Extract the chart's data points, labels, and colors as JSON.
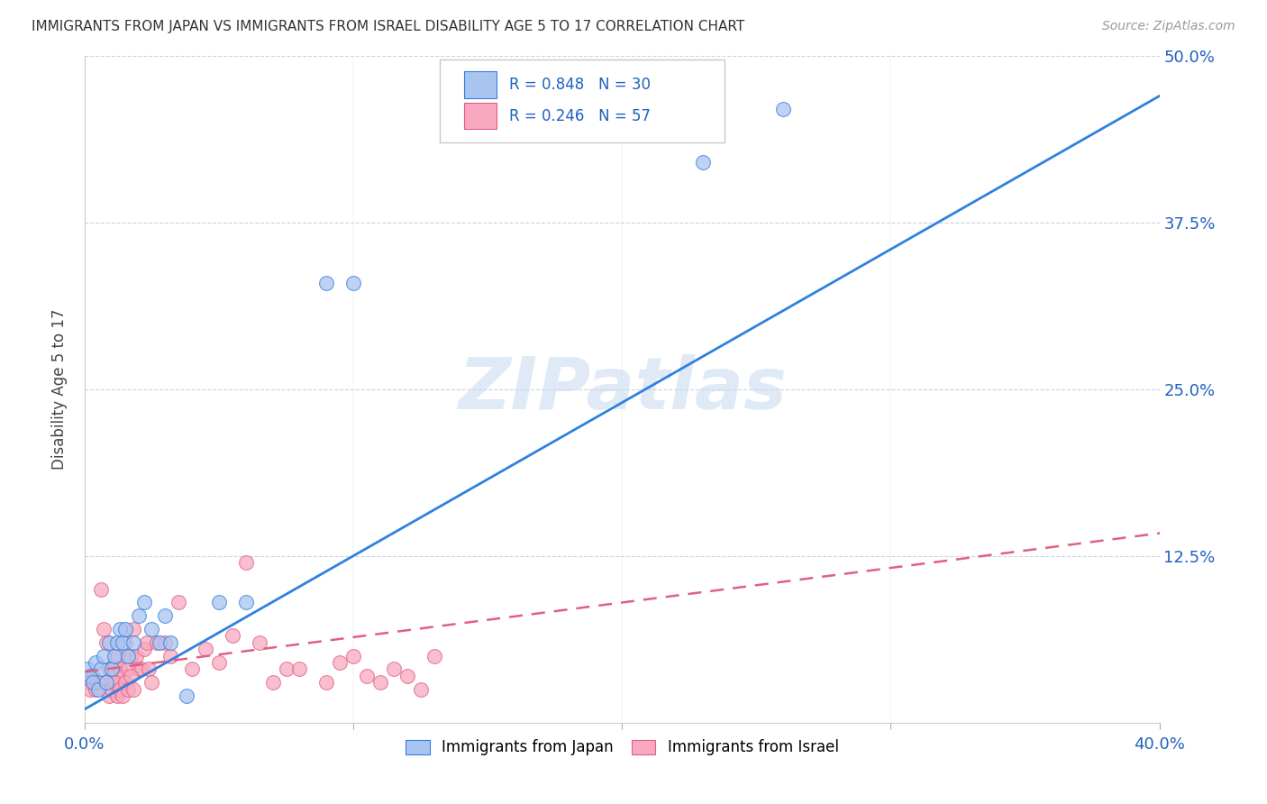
{
  "title": "IMMIGRANTS FROM JAPAN VS IMMIGRANTS FROM ISRAEL DISABILITY AGE 5 TO 17 CORRELATION CHART",
  "source": "Source: ZipAtlas.com",
  "ylabel": "Disability Age 5 to 17",
  "xlim": [
    0.0,
    0.4
  ],
  "ylim": [
    0.0,
    0.5
  ],
  "japan_color": "#aac4f0",
  "japan_line_color": "#3080e0",
  "israel_color": "#f8a8c0",
  "israel_line_color": "#e06080",
  "legend_label_japan": "Immigrants from Japan",
  "legend_label_israel": "Immigrants from Israel",
  "watermark_text": "ZIPatlas",
  "watermark_color": "#c8d8f0",
  "background_color": "#ffffff",
  "grid_color": "#c8d4e8",
  "japan_scatter_x": [
    0.001,
    0.002,
    0.003,
    0.004,
    0.005,
    0.006,
    0.007,
    0.008,
    0.009,
    0.01,
    0.011,
    0.012,
    0.013,
    0.014,
    0.015,
    0.016,
    0.018,
    0.02,
    0.022,
    0.025,
    0.028,
    0.03,
    0.032,
    0.038,
    0.05,
    0.06,
    0.09,
    0.1,
    0.23,
    0.26
  ],
  "japan_scatter_y": [
    0.04,
    0.035,
    0.03,
    0.045,
    0.025,
    0.04,
    0.05,
    0.03,
    0.06,
    0.04,
    0.05,
    0.06,
    0.07,
    0.06,
    0.07,
    0.05,
    0.06,
    0.08,
    0.09,
    0.07,
    0.06,
    0.08,
    0.06,
    0.02,
    0.09,
    0.09,
    0.33,
    0.33,
    0.42,
    0.46
  ],
  "israel_scatter_x": [
    0.001,
    0.002,
    0.003,
    0.004,
    0.005,
    0.006,
    0.007,
    0.008,
    0.009,
    0.01,
    0.011,
    0.012,
    0.013,
    0.014,
    0.015,
    0.016,
    0.017,
    0.018,
    0.019,
    0.02,
    0.021,
    0.022,
    0.023,
    0.024,
    0.025,
    0.027,
    0.03,
    0.032,
    0.035,
    0.04,
    0.045,
    0.05,
    0.055,
    0.06,
    0.065,
    0.07,
    0.075,
    0.08,
    0.09,
    0.095,
    0.1,
    0.105,
    0.11,
    0.115,
    0.12,
    0.125,
    0.13,
    0.009,
    0.01,
    0.011,
    0.012,
    0.013,
    0.014,
    0.015,
    0.016,
    0.017,
    0.018
  ],
  "israel_scatter_y": [
    0.03,
    0.025,
    0.035,
    0.025,
    0.03,
    0.1,
    0.07,
    0.06,
    0.04,
    0.03,
    0.04,
    0.05,
    0.04,
    0.035,
    0.06,
    0.04,
    0.05,
    0.07,
    0.05,
    0.04,
    0.04,
    0.055,
    0.06,
    0.04,
    0.03,
    0.06,
    0.06,
    0.05,
    0.09,
    0.04,
    0.055,
    0.045,
    0.065,
    0.12,
    0.06,
    0.03,
    0.04,
    0.04,
    0.03,
    0.045,
    0.05,
    0.035,
    0.03,
    0.04,
    0.035,
    0.025,
    0.05,
    0.02,
    0.025,
    0.03,
    0.02,
    0.025,
    0.02,
    0.03,
    0.025,
    0.035,
    0.025
  ],
  "japan_regression": {
    "slope": 1.15,
    "intercept": 0.01
  },
  "israel_regression": {
    "slope": 0.26,
    "intercept": 0.038
  }
}
